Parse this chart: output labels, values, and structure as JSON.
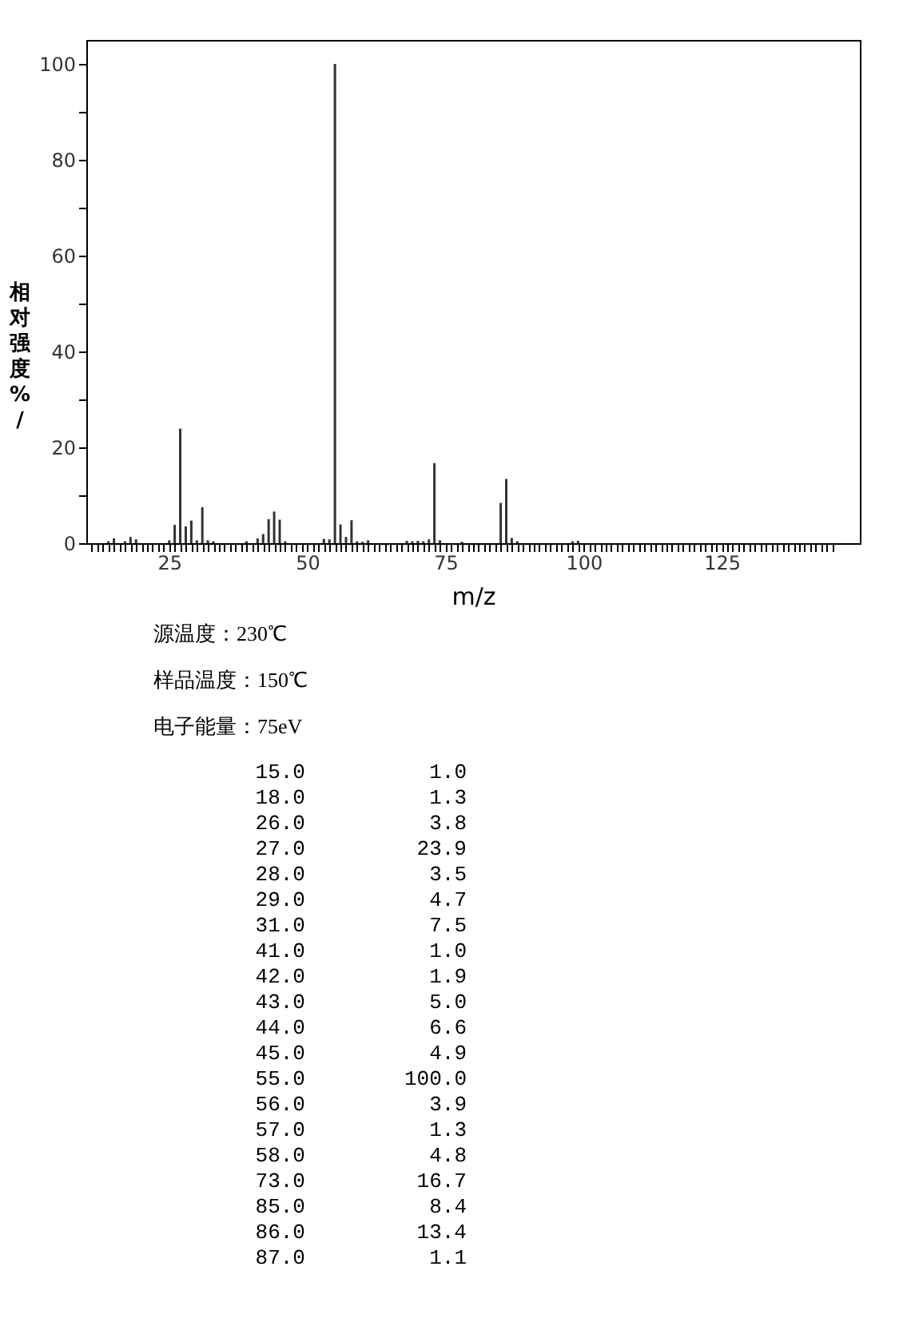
{
  "chart_data": [
    {
      "type": "bar",
      "xlabel": "m/z",
      "ylabel": "相对强度%/",
      "color": "#333333",
      "x": [
        14,
        15,
        17,
        18,
        19,
        25,
        26,
        27,
        28,
        29,
        30,
        31,
        32,
        33,
        39,
        41,
        42,
        43,
        44,
        45,
        46,
        53,
        54,
        55,
        56,
        57,
        58,
        59,
        60,
        61,
        68,
        69,
        70,
        71,
        72,
        73,
        74,
        78,
        85,
        86,
        87,
        88,
        98,
        99
      ],
      "values": [
        0.4,
        1.0,
        0.4,
        1.3,
        0.8,
        0.6,
        3.8,
        23.9,
        3.5,
        4.7,
        0.6,
        7.5,
        0.6,
        0.4,
        0.4,
        1.0,
        1.9,
        5.0,
        6.6,
        4.9,
        0.4,
        0.9,
        0.8,
        100.0,
        3.9,
        1.3,
        4.8,
        0.4,
        0.3,
        0.6,
        0.5,
        0.4,
        0.5,
        0.4,
        0.8,
        16.7,
        0.6,
        0.3,
        8.4,
        13.4,
        1.1,
        0.4,
        0.4,
        0.5
      ],
      "xlim": [
        10,
        150
      ],
      "ylim": [
        0,
        105
      ],
      "yticks": [
        0,
        {
          "value": 10,
          "label": null
        },
        20,
        {
          "value": 30,
          "label": null
        },
        40,
        {
          "value": 50,
          "label": null
        },
        60,
        {
          "value": 70,
          "label": null
        },
        80,
        {
          "value": 90,
          "label": null
        },
        100
      ],
      "xticks": [
        {
          "value": 11,
          "label": null
        },
        {
          "value": 12,
          "label": null
        },
        {
          "value": 13,
          "label": null
        },
        {
          "value": 14,
          "label": null
        },
        {
          "value": 15,
          "label": null
        },
        {
          "value": 16,
          "label": null
        },
        {
          "value": 17,
          "label": null
        },
        {
          "value": 18,
          "label": null
        },
        {
          "value": 19,
          "label": null
        },
        {
          "value": 20,
          "label": null
        },
        {
          "value": 21,
          "label": null
        },
        {
          "value": 22,
          "label": null
        },
        {
          "value": 23,
          "label": null
        },
        {
          "value": 24,
          "label": null
        },
        25,
        {
          "value": 26,
          "label": null
        },
        {
          "value": 27,
          "label": null
        },
        {
          "value": 28,
          "label": null
        },
        {
          "value": 29,
          "label": null
        },
        {
          "value": 30,
          "label": null
        },
        {
          "value": 31,
          "label": null
        },
        {
          "value": 32,
          "label": null
        },
        {
          "value": 33,
          "label": null
        },
        {
          "value": 34,
          "label": null
        },
        {
          "value": 35,
          "label": null
        },
        {
          "value": 36,
          "label": null
        },
        {
          "value": 37,
          "label": null
        },
        {
          "value": 38,
          "label": null
        },
        {
          "value": 39,
          "label": null
        },
        {
          "value": 40,
          "label": null
        },
        {
          "value": 41,
          "label": null
        },
        {
          "value": 42,
          "label": null
        },
        {
          "value": 43,
          "label": null
        },
        {
          "value": 44,
          "label": null
        },
        {
          "value": 45,
          "label": null
        },
        {
          "value": 46,
          "label": null
        },
        {
          "value": 47,
          "label": null
        },
        {
          "value": 48,
          "label": null
        },
        {
          "value": 49,
          "label": null
        },
        50,
        {
          "value": 51,
          "label": null
        },
        {
          "value": 52,
          "label": null
        },
        {
          "value": 53,
          "label": null
        },
        {
          "value": 54,
          "label": null
        },
        {
          "value": 55,
          "label": null
        },
        {
          "value": 56,
          "label": null
        },
        {
          "value": 57,
          "label": null
        },
        {
          "value": 58,
          "label": null
        },
        {
          "value": 59,
          "label": null
        },
        {
          "value": 60,
          "label": null
        },
        {
          "value": 61,
          "label": null
        },
        {
          "value": 62,
          "label": null
        },
        {
          "value": 63,
          "label": null
        },
        {
          "value": 64,
          "label": null
        },
        {
          "value": 65,
          "label": null
        },
        {
          "value": 66,
          "label": null
        },
        {
          "value": 67,
          "label": null
        },
        {
          "value": 68,
          "label": null
        },
        {
          "value": 69,
          "label": null
        },
        {
          "value": 70,
          "label": null
        },
        {
          "value": 71,
          "label": null
        },
        {
          "value": 72,
          "label": null
        },
        {
          "value": 73,
          "label": null
        },
        {
          "value": 74,
          "label": null
        },
        75,
        {
          "value": 76,
          "label": null
        },
        {
          "value": 77,
          "label": null
        },
        {
          "value": 78,
          "label": null
        },
        {
          "value": 79,
          "label": null
        },
        {
          "value": 80,
          "label": null
        },
        {
          "value": 81,
          "label": null
        },
        {
          "value": 82,
          "label": null
        },
        {
          "value": 83,
          "label": null
        },
        {
          "value": 84,
          "label": null
        },
        {
          "value": 85,
          "label": null
        },
        {
          "value": 86,
          "label": null
        },
        {
          "value": 87,
          "label": null
        },
        {
          "value": 88,
          "label": null
        },
        {
          "value": 89,
          "label": null
        },
        {
          "value": 90,
          "label": null
        },
        {
          "value": 91,
          "label": null
        },
        {
          "value": 92,
          "label": null
        },
        {
          "value": 93,
          "label": null
        },
        {
          "value": 94,
          "label": null
        },
        {
          "value": 95,
          "label": null
        },
        {
          "value": 96,
          "label": null
        },
        {
          "value": 97,
          "label": null
        },
        {
          "value": 98,
          "label": null
        },
        {
          "value": 99,
          "label": null
        },
        100,
        {
          "value": 101,
          "label": null
        },
        {
          "value": 102,
          "label": null
        },
        {
          "value": 103,
          "label": null
        },
        {
          "value": 104,
          "label": null
        },
        {
          "value": 105,
          "label": null
        },
        {
          "value": 106,
          "label": null
        },
        {
          "value": 107,
          "label": null
        },
        {
          "value": 108,
          "label": null
        },
        {
          "value": 109,
          "label": null
        },
        {
          "value": 110,
          "label": null
        },
        {
          "value": 111,
          "label": null
        },
        {
          "value": 112,
          "label": null
        },
        {
          "value": 113,
          "label": null
        },
        {
          "value": 114,
          "label": null
        },
        {
          "value": 115,
          "label": null
        },
        {
          "value": 116,
          "label": null
        },
        {
          "value": 117,
          "label": null
        },
        {
          "value": 118,
          "label": null
        },
        {
          "value": 119,
          "label": null
        },
        {
          "value": 120,
          "label": null
        },
        {
          "value": 121,
          "label": null
        },
        {
          "value": 122,
          "label": null
        },
        {
          "value": 123,
          "label": null
        },
        {
          "value": 124,
          "label": null
        },
        125,
        {
          "value": 126,
          "label": null
        },
        {
          "value": 127,
          "label": null
        },
        {
          "value": 128,
          "label": null
        },
        {
          "value": 129,
          "label": null
        },
        {
          "value": 130,
          "label": null
        },
        {
          "value": 131,
          "label": null
        },
        {
          "value": 132,
          "label": null
        },
        {
          "value": 133,
          "label": null
        },
        {
          "value": 134,
          "label": null
        },
        {
          "value": 135,
          "label": null
        },
        {
          "value": 136,
          "label": null
        },
        {
          "value": 137,
          "label": null
        },
        {
          "value": 138,
          "label": null
        },
        {
          "value": 139,
          "label": null
        },
        {
          "value": 140,
          "label": null
        },
        {
          "value": 141,
          "label": null
        },
        {
          "value": 142,
          "label": null
        },
        {
          "value": 143,
          "label": null
        },
        {
          "value": 144,
          "label": null
        },
        {
          "value": 145,
          "label": null
        }
      ],
      "annotations": [
        "源温度：230℃",
        "样品温度：150℃",
        "电子能量：75eV"
      ]
    },
    {
      "type": "other",
      "categories": [
        "15.0",
        "18.0",
        "26.0",
        "27.0",
        "28.0",
        "29.0",
        "31.0",
        "41.0",
        "42.0",
        "43.0",
        "44.0",
        "45.0",
        "55.0",
        "56.0",
        "57.0",
        "58.0",
        "73.0",
        "85.0",
        "86.0",
        "87.0"
      ],
      "values": [
        1.0,
        1.3,
        3.8,
        23.9,
        3.5,
        4.7,
        7.5,
        1.0,
        1.9,
        5.0,
        6.6,
        4.9,
        100.0,
        3.9,
        1.3,
        4.8,
        16.7,
        8.4,
        13.4,
        1.1
      ],
      "value_labels": [
        "1.0",
        "1.3",
        "3.8",
        "23.9",
        "3.5",
        "4.7",
        "7.5",
        "1.0",
        "1.9",
        "5.0",
        "6.6",
        "4.9",
        "100.0",
        "3.9",
        "1.3",
        "4.8",
        "16.7",
        "8.4",
        "13.4",
        "1.1"
      ]
    }
  ]
}
